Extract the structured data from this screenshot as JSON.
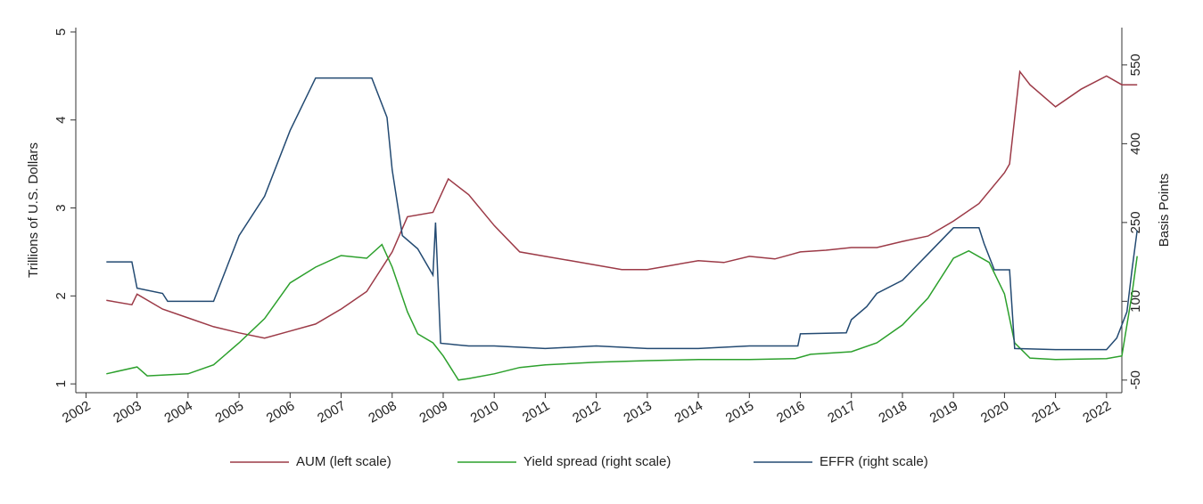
{
  "chart_data": {
    "type": "line",
    "y_label": "Trillions of U.S. Dollars",
    "y2_label": "Basis Points",
    "legend": "bottom",
    "xlim": [
      2001.8,
      2022.3
    ],
    "xticks": [
      2002,
      2003,
      2004,
      2005,
      2006,
      2007,
      2008,
      2009,
      2010,
      2011,
      2012,
      2013,
      2014,
      2015,
      2016,
      2017,
      2018,
      2019,
      2020,
      2021,
      2022
    ],
    "ylim": [
      0.9,
      5.05
    ],
    "yticks": [
      1,
      2,
      3,
      4,
      5
    ],
    "y2lim": [
      -74,
      621
    ],
    "y2ticks": [
      -50,
      100,
      250,
      400,
      550
    ],
    "series": [
      {
        "name": "AUM (left scale)",
        "color": "#9c3a47",
        "x": [
          2002.4,
          2002.9,
          2003.0,
          2003.5,
          2004,
          2004.5,
          2005,
          2005.5,
          2006,
          2006.5,
          2007,
          2007.5,
          2008,
          2008.3,
          2008.8,
          2009.1,
          2009.5,
          2010,
          2010.5,
          2011,
          2011.5,
          2012,
          2012.5,
          2013,
          2013.5,
          2014,
          2014.5,
          2015,
          2015.5,
          2016,
          2016.5,
          2017,
          2017.5,
          2018,
          2018.5,
          2019,
          2019.5,
          2020,
          2020.1,
          2020.3,
          2020.5,
          2021,
          2021.5,
          2022,
          2022.3,
          2022.6
        ],
        "values": [
          1.95,
          1.9,
          2.02,
          1.85,
          1.75,
          1.65,
          1.58,
          1.52,
          1.6,
          1.68,
          1.85,
          2.05,
          2.5,
          2.9,
          2.95,
          3.33,
          3.15,
          2.8,
          2.5,
          2.45,
          2.4,
          2.35,
          2.3,
          2.3,
          2.35,
          2.4,
          2.38,
          2.45,
          2.42,
          2.5,
          2.52,
          2.55,
          2.55,
          2.62,
          2.68,
          2.85,
          3.05,
          3.4,
          3.5,
          4.55,
          4.4,
          4.15,
          4.35,
          4.5,
          4.4,
          4.4
        ]
      },
      {
        "name": "Yield spread (right scale)",
        "color": "#2ca02c",
        "axis": "y2",
        "x": [
          2002.4,
          2003,
          2003.2,
          2004,
          2004.5,
          2005,
          2005.5,
          2006,
          2006.5,
          2007,
          2007.5,
          2007.8,
          2008,
          2008.3,
          2008.5,
          2008.8,
          2009,
          2009.3,
          2009.5,
          2010,
          2010.5,
          2011,
          2012,
          2013,
          2014,
          2015,
          2015.9,
          2016.2,
          2017,
          2017.5,
          2018,
          2018.5,
          2019,
          2019.3,
          2019.7,
          2020,
          2020.2,
          2020.5,
          2021,
          2022,
          2022.3,
          2022.5,
          2022.6
        ],
        "values": [
          -38,
          -25,
          -42,
          -38,
          -21,
          21,
          67,
          135,
          165,
          187,
          182,
          208,
          165,
          80,
          38,
          21,
          -4,
          -50,
          -47,
          -38,
          -26,
          -21,
          -16,
          -13,
          -11,
          -11,
          -9,
          -1,
          4,
          21,
          55,
          106,
          182,
          196,
          174,
          114,
          21,
          -8,
          -11,
          -9,
          -4,
          114,
          186
        ]
      },
      {
        "name": "EFFR (right scale)",
        "color": "#234a72",
        "axis": "y2",
        "x": [
          2002.4,
          2002.9,
          2003.0,
          2003.5,
          2003.6,
          2004.5,
          2005,
          2005.5,
          2006,
          2006.5,
          2007.6,
          2007.9,
          2008,
          2008.2,
          2008.5,
          2008.8,
          2008.85,
          2008.95,
          2009.5,
          2010,
          2011,
          2012,
          2013,
          2014,
          2015,
          2015.95,
          2016,
          2016.9,
          2017,
          2017.3,
          2017.5,
          2018,
          2018.3,
          2018.5,
          2019,
          2019.5,
          2019.6,
          2019.8,
          2020.1,
          2020.2,
          2021,
          2022,
          2022.2,
          2022.4,
          2022.5,
          2022.6
        ],
        "values": [
          175,
          175,
          125,
          115,
          100,
          100,
          225,
          300,
          425,
          525,
          525,
          450,
          350,
          225,
          200,
          150,
          250,
          20,
          15,
          15,
          10,
          15,
          10,
          10,
          15,
          15,
          38,
          40,
          65,
          90,
          115,
          140,
          170,
          190,
          240,
          240,
          210,
          160,
          160,
          10,
          8,
          8,
          30,
          80,
          160,
          235
        ]
      }
    ]
  }
}
